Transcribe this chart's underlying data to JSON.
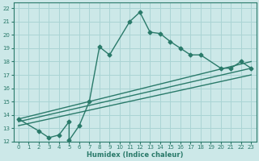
{
  "title": "",
  "xlabel": "Humidex (Indice chaleur)",
  "bg_color": "#cce8e8",
  "grid_color": "#aad4d4",
  "line_color": "#2a7a6a",
  "xlim": [
    -0.5,
    23.5
  ],
  "ylim": [
    12,
    22.4
  ],
  "xticks": [
    0,
    1,
    2,
    3,
    4,
    5,
    6,
    7,
    8,
    9,
    10,
    11,
    12,
    13,
    14,
    15,
    16,
    17,
    18,
    19,
    20,
    21,
    22,
    23
  ],
  "yticks": [
    12,
    13,
    14,
    15,
    16,
    17,
    18,
    19,
    20,
    21,
    22
  ],
  "series": [
    {
      "x": [
        0,
        2,
        3,
        4,
        5,
        5,
        6,
        7,
        8,
        9,
        11,
        12,
        13,
        14,
        15,
        16,
        17,
        18,
        20,
        21,
        22,
        23
      ],
      "y": [
        13.7,
        12.8,
        12.3,
        12.5,
        13.5,
        12.1,
        13.2,
        15.0,
        19.1,
        18.5,
        21.0,
        21.7,
        20.2,
        20.1,
        19.5,
        19.0,
        18.5,
        18.5,
        17.5,
        17.5,
        18.0,
        17.5
      ],
      "marker": "D",
      "markersize": 2.5,
      "linewidth": 1.0
    },
    {
      "x": [
        0,
        23
      ],
      "y": [
        13.7,
        18.0
      ],
      "marker": null,
      "markersize": 0,
      "linewidth": 1.0
    },
    {
      "x": [
        0,
        23
      ],
      "y": [
        13.5,
        17.5
      ],
      "marker": null,
      "markersize": 0,
      "linewidth": 1.0
    },
    {
      "x": [
        0,
        23
      ],
      "y": [
        13.2,
        17.0
      ],
      "marker": null,
      "markersize": 0,
      "linewidth": 1.0
    }
  ]
}
